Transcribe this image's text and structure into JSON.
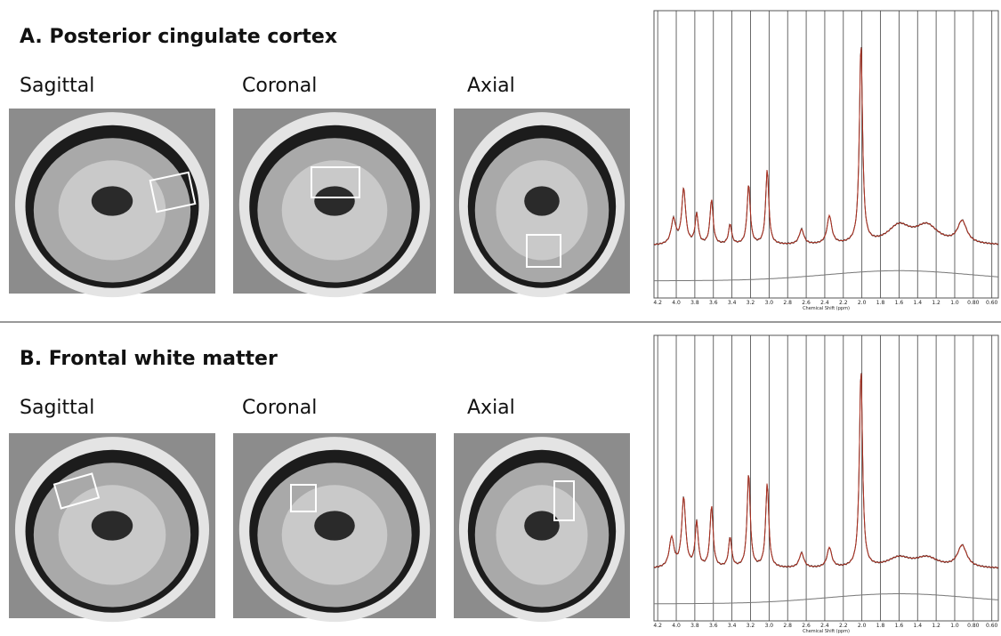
{
  "panels": [
    {
      "title": "A. Posterior cingulate cortex",
      "views": [
        "Sagittal",
        "Coronal",
        "Axial"
      ],
      "spectrum": {
        "xlabel": "Chemical Shift (ppm)",
        "xlim": [
          4.24,
          0.53
        ],
        "xticks": [
          4.2,
          {
            "value": 4,
            "label": "4.0"
          },
          3.8,
          3.6,
          3.4,
          3.2,
          {
            "value": 3,
            "label": "3.0"
          },
          2.8,
          2.6,
          2.4,
          2.2,
          {
            "value": 2,
            "label": "2.0"
          },
          1.8,
          1.6,
          1.4,
          1.2,
          {
            "value": 1,
            "label": "1.0"
          },
          {
            "value": 0.8,
            "label": "0.80"
          },
          {
            "value": 0.6,
            "label": "0.60"
          }
        ]
      }
    },
    {
      "title": "B. Frontal white matter",
      "views": [
        "Sagittal",
        "Coronal",
        "Axial"
      ],
      "spectrum": {
        "xlabel": "Chemical Shift (ppm)",
        "xlim": [
          4.24,
          0.53
        ],
        "xticks": [
          4.2,
          {
            "value": 4,
            "label": "4.0"
          },
          3.8,
          3.6,
          3.4,
          3.2,
          {
            "value": 3,
            "label": "3.0"
          },
          2.8,
          2.6,
          2.4,
          2.2,
          {
            "value": 2,
            "label": "2.0"
          },
          1.8,
          1.6,
          1.4,
          1.2,
          {
            "value": 1,
            "label": "1.0"
          },
          {
            "value": 0.8,
            "label": "0.80"
          },
          {
            "value": 0.6,
            "label": "0.60"
          }
        ]
      }
    }
  ]
}
